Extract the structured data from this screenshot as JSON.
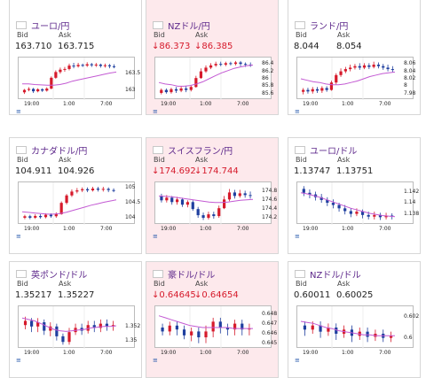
{
  "cards": [
    {
      "id": "eurjpy",
      "title": "ユーロ/円",
      "flag": "eu",
      "neg": false,
      "bid": "163.710",
      "ask": "163.715",
      "bid_down": false,
      "ask_down": false,
      "yticks": [
        "163.5",
        "163"
      ],
      "ymin": 162.8,
      "ymax": 163.9,
      "candles": [
        [
          162.95,
          163.02,
          162.9,
          163.05
        ],
        [
          163.02,
          163.05,
          162.98,
          163.1
        ],
        [
          163.05,
          162.98,
          162.93,
          163.08
        ],
        [
          162.98,
          163.04,
          162.95,
          163.07
        ],
        [
          163.04,
          163.0,
          162.96,
          163.07
        ],
        [
          163.0,
          163.06,
          162.97,
          163.1
        ],
        [
          163.06,
          163.38,
          163.04,
          163.42
        ],
        [
          163.38,
          163.55,
          163.35,
          163.6
        ],
        [
          163.55,
          163.62,
          163.5,
          163.68
        ],
        [
          163.62,
          163.64,
          163.56,
          163.7
        ],
        [
          163.64,
          163.74,
          163.6,
          163.8
        ],
        [
          163.74,
          163.72,
          163.66,
          163.82
        ],
        [
          163.72,
          163.76,
          163.68,
          163.82
        ],
        [
          163.76,
          163.74,
          163.7,
          163.8
        ],
        [
          163.74,
          163.78,
          163.7,
          163.84
        ],
        [
          163.78,
          163.75,
          163.7,
          163.82
        ],
        [
          163.75,
          163.77,
          163.7,
          163.82
        ],
        [
          163.77,
          163.73,
          163.68,
          163.8
        ],
        [
          163.73,
          163.75,
          163.68,
          163.8
        ],
        [
          163.75,
          163.72,
          163.66,
          163.79
        ],
        [
          163.72,
          163.71,
          163.66,
          163.78
        ]
      ],
      "ma": [
        163.2,
        163.2,
        163.18,
        163.17,
        163.16,
        163.16,
        163.18,
        163.22,
        163.28,
        163.32,
        163.36,
        163.4,
        163.44,
        163.48,
        163.52,
        163.55
      ]
    },
    {
      "id": "nzdjpy",
      "title": "NZドル/円",
      "flag": "nz",
      "neg": true,
      "bid": "86.373",
      "ask": "86.385",
      "bid_down": true,
      "ask_down": true,
      "yticks": [
        "86.4",
        "86.2",
        "86",
        "85.8",
        "85.6"
      ],
      "ymin": 85.5,
      "ymax": 86.5,
      "candles": [
        [
          85.62,
          85.7,
          85.58,
          85.74
        ],
        [
          85.7,
          85.64,
          85.6,
          85.74
        ],
        [
          85.64,
          85.72,
          85.6,
          85.76
        ],
        [
          85.72,
          85.68,
          85.62,
          85.78
        ],
        [
          85.68,
          85.74,
          85.64,
          85.8
        ],
        [
          85.74,
          85.7,
          85.64,
          85.8
        ],
        [
          85.7,
          85.78,
          85.66,
          85.82
        ],
        [
          85.78,
          86.02,
          85.76,
          86.08
        ],
        [
          86.02,
          86.2,
          86.0,
          86.28
        ],
        [
          86.2,
          86.3,
          86.16,
          86.36
        ],
        [
          86.3,
          86.36,
          86.26,
          86.42
        ],
        [
          86.36,
          86.4,
          86.32,
          86.46
        ],
        [
          86.4,
          86.38,
          86.34,
          86.46
        ],
        [
          86.38,
          86.42,
          86.34,
          86.46
        ],
        [
          86.42,
          86.4,
          86.36,
          86.46
        ],
        [
          86.4,
          86.44,
          86.36,
          86.48
        ],
        [
          86.44,
          86.4,
          86.34,
          86.48
        ],
        [
          86.4,
          86.38,
          86.32,
          86.44
        ],
        [
          86.38,
          86.37,
          86.32,
          86.44
        ]
      ],
      "ma": [
        85.9,
        85.86,
        85.84,
        85.8,
        85.8,
        85.82,
        85.86,
        85.92,
        86.0,
        86.08,
        86.16,
        86.22,
        86.28,
        86.32,
        86.35,
        86.37
      ]
    },
    {
      "id": "zarjpy",
      "title": "ランド/円",
      "flag": "za",
      "neg": false,
      "bid": "8.044",
      "ask": "8.054",
      "bid_down": false,
      "ask_down": false,
      "yticks": [
        "8.06",
        "8.04",
        "8.02",
        "8",
        "7.98"
      ],
      "ymin": 7.97,
      "ymax": 8.07,
      "candles": [
        [
          7.985,
          7.99,
          7.978,
          7.995
        ],
        [
          7.99,
          7.986,
          7.98,
          7.996
        ],
        [
          7.986,
          7.992,
          7.98,
          7.998
        ],
        [
          7.992,
          7.988,
          7.982,
          7.998
        ],
        [
          7.988,
          7.995,
          7.982,
          8.0
        ],
        [
          7.995,
          7.99,
          7.985,
          8.0
        ],
        [
          7.99,
          8.01,
          7.988,
          8.015
        ],
        [
          8.01,
          8.03,
          8.005,
          8.035
        ],
        [
          8.03,
          8.04,
          8.025,
          8.048
        ],
        [
          8.04,
          8.046,
          8.035,
          8.052
        ],
        [
          8.046,
          8.05,
          8.04,
          8.058
        ],
        [
          8.05,
          8.054,
          8.045,
          8.06
        ],
        [
          8.054,
          8.05,
          8.044,
          8.062
        ],
        [
          8.05,
          8.056,
          8.046,
          8.062
        ],
        [
          8.056,
          8.052,
          8.046,
          8.062
        ],
        [
          8.052,
          8.058,
          8.048,
          8.066
        ],
        [
          8.058,
          8.054,
          8.048,
          8.064
        ],
        [
          8.054,
          8.05,
          8.044,
          8.06
        ],
        [
          8.05,
          8.046,
          8.04,
          8.058
        ],
        [
          8.046,
          8.044,
          8.038,
          8.054
        ]
      ],
      "ma": [
        8.02,
        8.016,
        8.012,
        8.01,
        8.006,
        8.004,
        8.004,
        8.006,
        8.01,
        8.014,
        8.02,
        8.026,
        8.03,
        8.034,
        8.036,
        8.038
      ]
    },
    {
      "id": "cadjpy",
      "title": "カナダドル/円",
      "flag": "ca",
      "neg": false,
      "bid": "104.911",
      "ask": "104.926",
      "bid_down": false,
      "ask_down": false,
      "yticks": [
        "105",
        "104.5",
        "104"
      ],
      "ymin": 103.85,
      "ymax": 105.1,
      "candles": [
        [
          104.0,
          104.05,
          103.95,
          104.1
        ],
        [
          104.05,
          104.0,
          103.95,
          104.1
        ],
        [
          104.0,
          104.06,
          103.96,
          104.12
        ],
        [
          104.06,
          104.02,
          103.97,
          104.12
        ],
        [
          104.02,
          104.1,
          103.98,
          104.15
        ],
        [
          104.1,
          104.05,
          104.0,
          104.15
        ],
        [
          104.05,
          104.12,
          104.0,
          104.18
        ],
        [
          104.12,
          104.5,
          104.1,
          104.55
        ],
        [
          104.5,
          104.75,
          104.45,
          104.8
        ],
        [
          104.75,
          104.88,
          104.7,
          104.95
        ],
        [
          104.88,
          104.92,
          104.82,
          105.0
        ],
        [
          104.92,
          104.96,
          104.86,
          105.02
        ],
        [
          104.96,
          104.92,
          104.86,
          105.02
        ],
        [
          104.92,
          104.98,
          104.88,
          105.04
        ],
        [
          104.98,
          104.94,
          104.88,
          105.04
        ],
        [
          104.94,
          104.97,
          104.88,
          105.04
        ],
        [
          104.97,
          104.93,
          104.86,
          105.02
        ],
        [
          104.93,
          104.91,
          104.86,
          104.99
        ]
      ],
      "ma": [
        104.2,
        104.18,
        104.16,
        104.14,
        104.12,
        104.12,
        104.14,
        104.18,
        104.24,
        104.3,
        104.36,
        104.42,
        104.47,
        104.52,
        104.56,
        104.6
      ]
    },
    {
      "id": "chfjpy",
      "title": "スイスフラン/円",
      "flag": "ch",
      "neg": true,
      "bid": "174.692",
      "ask": "174.744",
      "bid_down": true,
      "ask_down": true,
      "yticks": [
        "174.8",
        "174.6",
        "174.4",
        "174.2"
      ],
      "ymin": 174.1,
      "ymax": 174.95,
      "candles": [
        [
          174.7,
          174.6,
          174.55,
          174.75
        ],
        [
          174.6,
          174.66,
          174.55,
          174.72
        ],
        [
          174.66,
          174.56,
          174.5,
          174.7
        ],
        [
          174.56,
          174.62,
          174.5,
          174.68
        ],
        [
          174.62,
          174.5,
          174.45,
          174.66
        ],
        [
          174.5,
          174.56,
          174.44,
          174.6
        ],
        [
          174.56,
          174.4,
          174.36,
          174.6
        ],
        [
          174.4,
          174.26,
          174.2,
          174.45
        ],
        [
          174.26,
          174.2,
          174.15,
          174.32
        ],
        [
          174.2,
          174.28,
          174.16,
          174.34
        ],
        [
          174.28,
          174.24,
          174.18,
          174.34
        ],
        [
          174.24,
          174.42,
          174.2,
          174.48
        ],
        [
          174.42,
          174.62,
          174.4,
          174.7
        ],
        [
          174.62,
          174.78,
          174.58,
          174.86
        ],
        [
          174.78,
          174.7,
          174.64,
          174.84
        ],
        [
          174.7,
          174.76,
          174.66,
          174.84
        ],
        [
          174.76,
          174.72,
          174.66,
          174.82
        ],
        [
          174.72,
          174.7,
          174.64,
          174.8
        ]
      ],
      "ma": [
        174.7,
        174.69,
        174.68,
        174.66,
        174.64,
        174.62,
        174.6,
        174.58,
        174.56,
        174.55,
        174.55,
        174.56,
        174.58,
        174.6,
        174.61,
        174.62
      ]
    },
    {
      "id": "eurusd",
      "title": "ユーロ/ドル",
      "flag": "eu",
      "neg": false,
      "bid": "1.13747",
      "ask": "1.13751",
      "bid_down": false,
      "ask_down": false,
      "yticks": [
        "1.142",
        "1.14",
        "1.138"
      ],
      "ymin": 1.1365,
      "ymax": 1.1432,
      "candles": [
        [
          1.1425,
          1.1418,
          1.1412,
          1.143
        ],
        [
          1.1418,
          1.1415,
          1.1408,
          1.1424
        ],
        [
          1.1415,
          1.141,
          1.1404,
          1.142
        ],
        [
          1.141,
          1.1405,
          1.14,
          1.1416
        ],
        [
          1.1405,
          1.14,
          1.1394,
          1.141
        ],
        [
          1.14,
          1.1396,
          1.139,
          1.1406
        ],
        [
          1.1396,
          1.139,
          1.1384,
          1.14
        ],
        [
          1.139,
          1.1385,
          1.1379,
          1.1396
        ],
        [
          1.1385,
          1.138,
          1.1374,
          1.139
        ],
        [
          1.138,
          1.1384,
          1.1376,
          1.139
        ],
        [
          1.1384,
          1.1378,
          1.1372,
          1.1388
        ],
        [
          1.1378,
          1.1375,
          1.137,
          1.1384
        ],
        [
          1.1375,
          1.1378,
          1.137,
          1.1384
        ],
        [
          1.1378,
          1.1374,
          1.1369,
          1.1382
        ],
        [
          1.1374,
          1.1377,
          1.137,
          1.1382
        ],
        [
          1.1377,
          1.1375,
          1.137,
          1.1381
        ]
      ],
      "ma": [
        1.1418,
        1.1416,
        1.1413,
        1.141,
        1.1406,
        1.1402,
        1.1398,
        1.1394,
        1.139,
        1.1387,
        1.1384,
        1.1381,
        1.1379,
        1.1377,
        1.1376,
        1.1375
      ]
    },
    {
      "id": "gbpusd",
      "title": "英ポンド/ドル",
      "flag": "gb",
      "neg": false,
      "bid": "1.35217",
      "ask": "1.35227",
      "bid_down": false,
      "ask_down": false,
      "yticks": [
        "1.352",
        "1.35"
      ],
      "ymin": 1.3492,
      "ymax": 1.3545,
      "candles": [
        [
          1.3522,
          1.3528,
          1.3516,
          1.3534
        ],
        [
          1.3528,
          1.352,
          1.3512,
          1.3532
        ],
        [
          1.352,
          1.3526,
          1.3512,
          1.3532
        ],
        [
          1.3526,
          1.3514,
          1.3508,
          1.353
        ],
        [
          1.3514,
          1.352,
          1.3506,
          1.3526
        ],
        [
          1.352,
          1.3506,
          1.35,
          1.3524
        ],
        [
          1.3506,
          1.3498,
          1.3494,
          1.351
        ],
        [
          1.3498,
          1.3512,
          1.3494,
          1.3518
        ],
        [
          1.3512,
          1.3518,
          1.3508,
          1.3524
        ],
        [
          1.3518,
          1.3514,
          1.3508,
          1.3524
        ],
        [
          1.3514,
          1.3522,
          1.351,
          1.3528
        ],
        [
          1.3522,
          1.3518,
          1.3512,
          1.3528
        ],
        [
          1.3518,
          1.3524,
          1.3512,
          1.353
        ],
        [
          1.3524,
          1.352,
          1.3514,
          1.353
        ],
        [
          1.352,
          1.3522,
          1.3514,
          1.3528
        ]
      ],
      "ma": [
        1.3532,
        1.353,
        1.3528,
        1.3524,
        1.352,
        1.3516,
        1.3514,
        1.3513,
        1.3514,
        1.3515,
        1.3516,
        1.3518,
        1.3519,
        1.352,
        1.352,
        1.3521
      ]
    },
    {
      "id": "audusd",
      "title": "豪ドル/ドル",
      "flag": "au",
      "neg": true,
      "bid": "0.64645",
      "ask": "0.64654",
      "bid_down": true,
      "ask_down": true,
      "yticks": [
        "0.648",
        "0.647",
        "0.646",
        "0.645"
      ],
      "ymin": 0.6447,
      "ymax": 0.6485,
      "candles": [
        [
          0.6466,
          0.6462,
          0.6458,
          0.647
        ],
        [
          0.6462,
          0.6468,
          0.6458,
          0.6472
        ],
        [
          0.6468,
          0.6464,
          0.6458,
          0.6472
        ],
        [
          0.6464,
          0.6458,
          0.6454,
          0.6468
        ],
        [
          0.6458,
          0.6462,
          0.6452,
          0.6466
        ],
        [
          0.6462,
          0.6456,
          0.645,
          0.6466
        ],
        [
          0.6456,
          0.6462,
          0.645,
          0.6468
        ],
        [
          0.6462,
          0.6472,
          0.6456,
          0.6476
        ],
        [
          0.6472,
          0.6466,
          0.646,
          0.6476
        ],
        [
          0.6466,
          0.6464,
          0.6458,
          0.647
        ],
        [
          0.6464,
          0.647,
          0.6458,
          0.6474
        ],
        [
          0.647,
          0.6464,
          0.6458,
          0.6474
        ],
        [
          0.6464,
          0.6465,
          0.6458,
          0.647
        ]
      ],
      "ma": [
        0.6478,
        0.6476,
        0.6474,
        0.6472,
        0.647,
        0.6468,
        0.6467,
        0.6466,
        0.6466,
        0.6466,
        0.6466,
        0.6466,
        0.6465,
        0.6465,
        0.6465,
        0.6465
      ]
    },
    {
      "id": "nzdusd",
      "title": "NZドル/ドル",
      "flag": "nz",
      "neg": false,
      "bid": "0.60011",
      "ask": "0.60025",
      "bid_down": false,
      "ask_down": false,
      "yticks": [
        "0.602",
        "0.6"
      ],
      "ymin": 0.5992,
      "ymax": 0.6028,
      "candles": [
        [
          0.6012,
          0.6008,
          0.6002,
          0.6016
        ],
        [
          0.6008,
          0.6012,
          0.6004,
          0.6016
        ],
        [
          0.6012,
          0.6006,
          0.6,
          0.6016
        ],
        [
          0.6006,
          0.601,
          0.6002,
          0.6014
        ],
        [
          0.601,
          0.6004,
          0.5998,
          0.6014
        ],
        [
          0.6004,
          0.6008,
          0.6,
          0.6012
        ],
        [
          0.6008,
          0.6002,
          0.5996,
          0.6012
        ],
        [
          0.6002,
          0.6006,
          0.5998,
          0.601
        ],
        [
          0.6006,
          0.6001,
          0.5996,
          0.601
        ],
        [
          0.6001,
          0.6004,
          0.5997,
          0.6008
        ],
        [
          0.6004,
          0.6,
          0.5996,
          0.6008
        ],
        [
          0.6,
          0.6002,
          0.5996,
          0.6006
        ]
      ],
      "ma": [
        0.6016,
        0.6015,
        0.6014,
        0.6012,
        0.601,
        0.6009,
        0.6007,
        0.6006,
        0.6005,
        0.6004,
        0.6003,
        0.6003,
        0.6002,
        0.6002,
        0.6002,
        0.6002
      ]
    }
  ],
  "labels": {
    "bid": "Bid",
    "ask": "Ask"
  },
  "down_arrow": "↓",
  "xticks": [
    "19:00",
    "1:00",
    "7:00"
  ],
  "menu_icon": "≡",
  "colors": {
    "title": "#5f2a8c",
    "down": "#d61a2b",
    "up": "#d61a2b",
    "bear": "#1f3f9f",
    "ma": "#c35ad3",
    "neg_bg": "#fde9ec",
    "border": "#d7d7d7"
  }
}
